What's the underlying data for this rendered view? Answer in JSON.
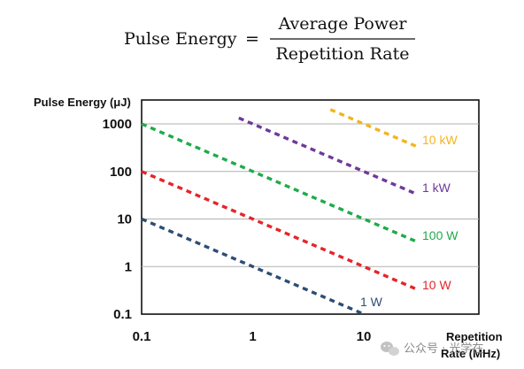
{
  "formula": {
    "lhs": "Pulse Energy",
    "equals": "=",
    "numerator": "Average Power",
    "denominator": "Repetition Rate"
  },
  "chart_data": {
    "type": "line",
    "ylabel": "Pulse Energy (μJ)",
    "xlabel_lines": [
      "Repetition",
      "Rate (MHz)"
    ],
    "x_scale": "log",
    "y_scale": "log",
    "xlim": [
      0.1,
      30
    ],
    "ylim": [
      0.1,
      3000
    ],
    "x_ticks": [
      0.1,
      1,
      10
    ],
    "x_tick_labels": [
      "0.1",
      "1",
      "10"
    ],
    "y_ticks": [
      0.1,
      1,
      10,
      100,
      1000
    ],
    "y_tick_labels": [
      "0.1",
      "1",
      "10",
      "100",
      "1000"
    ],
    "grid": "horizontal",
    "line_style": "dashed",
    "series": [
      {
        "name": "1 W",
        "color": "#2d4e73",
        "x": [
          0.1,
          10
        ],
        "y": [
          10,
          0.1
        ]
      },
      {
        "name": "10 W",
        "color": "#e5252a",
        "x": [
          0.1,
          30
        ],
        "y": [
          100,
          0.3333
        ]
      },
      {
        "name": "100 W",
        "color": "#1fab4b",
        "x": [
          0.1,
          30
        ],
        "y": [
          1000,
          3.333
        ]
      },
      {
        "name": "1 kW",
        "color": "#6e3a99",
        "x": [
          0.75,
          30
        ],
        "y": [
          1333,
          33.33
        ]
      },
      {
        "name": "10 kW",
        "color": "#f2b51f",
        "x": [
          5,
          30
        ],
        "y": [
          2000,
          333.3
        ]
      }
    ]
  },
  "watermark": {
    "text": "公众号 · 光学在",
    "icon": "wechat-icon"
  }
}
